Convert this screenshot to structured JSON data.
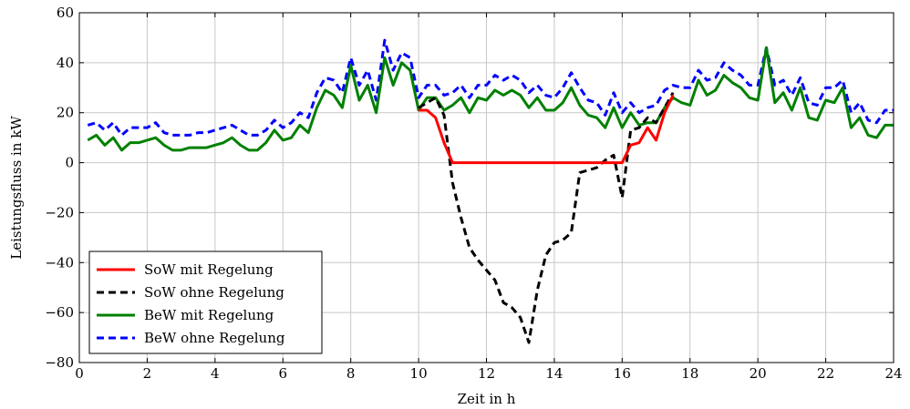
{
  "chart_data": {
    "type": "line",
    "xlabel": "Zeit in h",
    "ylabel": "Leistungsfluss in kW",
    "xlim": [
      0,
      24
    ],
    "ylim": [
      -80,
      60
    ],
    "x_ticks": [
      0,
      2,
      4,
      6,
      8,
      10,
      12,
      14,
      16,
      18,
      20,
      22,
      24
    ],
    "y_ticks": [
      -80,
      -60,
      -40,
      -20,
      0,
      20,
      40,
      60
    ],
    "y_tick_labels": [
      "−80",
      "−60",
      "−40",
      "−20",
      "0",
      "20",
      "40",
      "60"
    ],
    "grid": true,
    "legend_position": "bottom-left",
    "series": [
      {
        "name": "SoW mit Regelung",
        "color": "#ff0000",
        "dash": "solid",
        "x": [
          10.0,
          10.25,
          10.5,
          10.75,
          11.0,
          12.0,
          13.0,
          14.0,
          15.0,
          16.0,
          16.25,
          16.5,
          16.75,
          17.0,
          17.25,
          17.5
        ],
        "y": [
          21,
          21,
          18,
          8,
          0,
          0,
          0,
          0,
          0,
          0,
          7,
          8,
          14,
          9,
          20,
          27
        ]
      },
      {
        "name": "SoW ohne Regelung",
        "color": "#000000",
        "dash": "dashed",
        "x": [
          10.0,
          10.25,
          10.5,
          10.75,
          11.0,
          11.25,
          11.5,
          11.75,
          12.0,
          12.25,
          12.5,
          12.75,
          13.0,
          13.25,
          13.5,
          13.75,
          14.0,
          14.25,
          14.5,
          14.75,
          15.0,
          15.25,
          15.5,
          15.75,
          16.0,
          16.25,
          16.5,
          16.75,
          17.0,
          17.25,
          17.5
        ],
        "y": [
          22,
          24,
          26,
          19,
          -8,
          -22,
          -34,
          -39,
          -43,
          -47,
          -56,
          -58,
          -62,
          -72,
          -51,
          -37,
          -32,
          -31,
          -28,
          -4,
          -3,
          -2,
          1,
          3,
          -14,
          13,
          14,
          18,
          16,
          22,
          28
        ]
      },
      {
        "name": "BeW mit Regelung",
        "color": "#008000",
        "dash": "solid",
        "x": [
          0.25,
          0.5,
          0.75,
          1.0,
          1.25,
          1.5,
          1.75,
          2.0,
          2.25,
          2.5,
          2.75,
          3.0,
          3.25,
          3.5,
          3.75,
          4.0,
          4.25,
          4.5,
          4.75,
          5.0,
          5.25,
          5.5,
          5.75,
          6.0,
          6.25,
          6.5,
          6.75,
          7.0,
          7.25,
          7.5,
          7.75,
          8.0,
          8.25,
          8.5,
          8.75,
          9.0,
          9.25,
          9.5,
          9.75,
          10.0,
          10.25,
          10.5,
          10.75,
          11.0,
          11.25,
          11.5,
          11.75,
          12.0,
          12.25,
          12.5,
          12.75,
          13.0,
          13.25,
          13.5,
          13.75,
          14.0,
          14.25,
          14.5,
          14.75,
          15.0,
          15.25,
          15.5,
          15.75,
          16.0,
          16.25,
          16.5,
          16.75,
          17.0,
          17.25,
          17.5,
          17.75,
          18.0,
          18.25,
          18.5,
          18.75,
          19.0,
          19.25,
          19.5,
          19.75,
          20.0,
          20.25,
          20.5,
          20.75,
          21.0,
          21.25,
          21.5,
          21.75,
          22.0,
          22.25,
          22.5,
          22.75,
          23.0,
          23.25,
          23.5,
          23.75,
          24.0
        ],
        "y": [
          9,
          11,
          7,
          10,
          5,
          8,
          8,
          9,
          10,
          7,
          5,
          5,
          6,
          6,
          6,
          7,
          8,
          10,
          7,
          5,
          5,
          8,
          13,
          9,
          10,
          15,
          12,
          22,
          29,
          27,
          22,
          39,
          25,
          31,
          20,
          42,
          31,
          40,
          37,
          21,
          26,
          26,
          21,
          23,
          26,
          20,
          26,
          25,
          29,
          27,
          29,
          27,
          22,
          26,
          21,
          21,
          24,
          30,
          23,
          19,
          18,
          14,
          22,
          14,
          20,
          15,
          16,
          16,
          22,
          26,
          24,
          23,
          33,
          27,
          29,
          35,
          32,
          30,
          26,
          25,
          46,
          24,
          28,
          21,
          30,
          18,
          17,
          25,
          24,
          30,
          14,
          18,
          11,
          10,
          15,
          15
        ]
      },
      {
        "name": "BeW ohne Regelung",
        "color": "#0000ff",
        "dash": "dashed",
        "x": [
          0.25,
          0.5,
          0.75,
          1.0,
          1.25,
          1.5,
          1.75,
          2.0,
          2.25,
          2.5,
          2.75,
          3.0,
          3.25,
          3.5,
          3.75,
          4.0,
          4.25,
          4.5,
          4.75,
          5.0,
          5.25,
          5.5,
          5.75,
          6.0,
          6.25,
          6.5,
          6.75,
          7.0,
          7.25,
          7.5,
          7.75,
          8.0,
          8.25,
          8.5,
          8.75,
          9.0,
          9.25,
          9.5,
          9.75,
          10.0,
          10.25,
          10.5,
          10.75,
          11.0,
          11.25,
          11.5,
          11.75,
          12.0,
          12.25,
          12.5,
          12.75,
          13.0,
          13.25,
          13.5,
          13.75,
          14.0,
          14.25,
          14.5,
          14.75,
          15.0,
          15.25,
          15.5,
          15.75,
          16.0,
          16.25,
          16.5,
          16.75,
          17.0,
          17.25,
          17.5,
          17.75,
          18.0,
          18.25,
          18.5,
          18.75,
          19.0,
          19.25,
          19.5,
          19.75,
          20.0,
          20.25,
          20.5,
          20.75,
          21.0,
          21.25,
          21.5,
          21.75,
          22.0,
          22.25,
          22.5,
          22.75,
          23.0,
          23.25,
          23.5,
          23.75,
          24.0
        ],
        "y": [
          15,
          16,
          13,
          16,
          11,
          14,
          14,
          14,
          16,
          12,
          11,
          11,
          11,
          12,
          12,
          13,
          14,
          15,
          13,
          11,
          11,
          13,
          17,
          14,
          16,
          20,
          18,
          28,
          34,
          33,
          28,
          42,
          31,
          37,
          25,
          49,
          37,
          44,
          42,
          26,
          31,
          31,
          27,
          28,
          31,
          26,
          31,
          31,
          35,
          33,
          35,
          33,
          28,
          31,
          27,
          26,
          30,
          36,
          30,
          25,
          24,
          19,
          28,
          20,
          24,
          20,
          22,
          23,
          29,
          31,
          30,
          30,
          37,
          33,
          34,
          40,
          37,
          35,
          31,
          31,
          46,
          31,
          33,
          27,
          34,
          24,
          23,
          30,
          30,
          33,
          20,
          24,
          17,
          16,
          21,
          21
        ]
      }
    ]
  }
}
